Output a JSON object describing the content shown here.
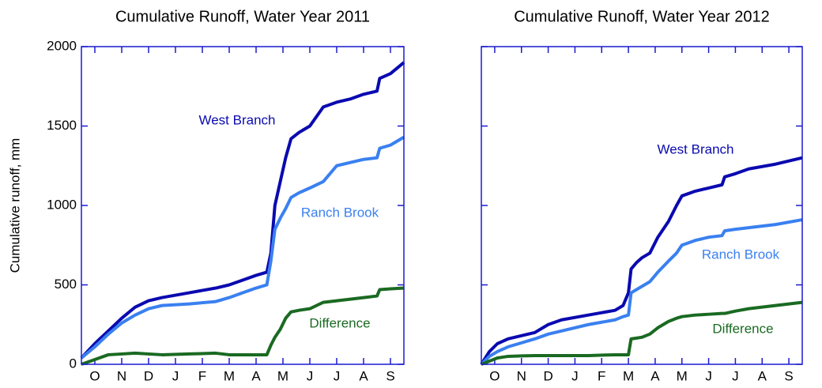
{
  "chart_data": [
    {
      "type": "line",
      "title": "Cumulative Runoff, Water Year 2011",
      "y_label": "Cumulative runoff, mm",
      "x": [
        0,
        0.5,
        1,
        1.5,
        2,
        2.5,
        3,
        4,
        5,
        5.5,
        6,
        6.5,
        6.9,
        7.05,
        7.2,
        7.4,
        7.6,
        7.8,
        8.1,
        8.5,
        9,
        9.5,
        10,
        10.5,
        11,
        11.1,
        11.5,
        12
      ],
      "xlim": [
        0,
        12
      ],
      "xticks": [
        {
          "value": 0.5,
          "label": "O"
        },
        {
          "value": 1.5,
          "label": "N"
        },
        {
          "value": 2.5,
          "label": "D"
        },
        {
          "value": 3.5,
          "label": "J"
        },
        {
          "value": 4.5,
          "label": "F"
        },
        {
          "value": 5.5,
          "label": "M"
        },
        {
          "value": 6.5,
          "label": "A"
        },
        {
          "value": 7.5,
          "label": "M"
        },
        {
          "value": 8.5,
          "label": "J"
        },
        {
          "value": 9.5,
          "label": "J"
        },
        {
          "value": 10.5,
          "label": "A"
        },
        {
          "value": 11.5,
          "label": "S"
        }
      ],
      "ylim": [
        0,
        2000
      ],
      "yticks": [
        0,
        500,
        1000,
        1500,
        2000
      ],
      "series": [
        {
          "name": "West Branch",
          "color": "#0a0ab0",
          "values": [
            40,
            130,
            210,
            290,
            360,
            400,
            420,
            450,
            480,
            500,
            530,
            560,
            580,
            700,
            1000,
            1150,
            1300,
            1420,
            1460,
            1500,
            1620,
            1650,
            1670,
            1700,
            1720,
            1800,
            1830,
            1900
          ]
        },
        {
          "name": "Ranch Brook",
          "color": "#3a80f0",
          "values": [
            40,
            110,
            190,
            260,
            310,
            350,
            370,
            380,
            395,
            420,
            450,
            480,
            500,
            650,
            850,
            920,
            980,
            1050,
            1080,
            1110,
            1150,
            1250,
            1270,
            1290,
            1300,
            1360,
            1380,
            1430
          ]
        },
        {
          "name": "Difference",
          "color": "#1a6a22",
          "values": [
            0,
            30,
            60,
            65,
            70,
            65,
            60,
            65,
            70,
            60,
            60,
            60,
            60,
            120,
            170,
            220,
            290,
            330,
            340,
            350,
            390,
            400,
            410,
            420,
            430,
            470,
            475,
            480
          ]
        }
      ]
    },
    {
      "type": "line",
      "title": "Cumulative Runoff, Water Year 2012",
      "x": [
        0,
        0.3,
        0.6,
        1,
        1.5,
        2,
        2.5,
        3,
        4,
        5,
        5.3,
        5.5,
        5.6,
        5.8,
        6,
        6.3,
        6.6,
        7,
        7.3,
        7.5,
        8,
        8.5,
        9,
        9.1,
        9.5,
        10,
        11,
        12
      ],
      "xlim": [
        0,
        12
      ],
      "xticks": [
        {
          "value": 0.5,
          "label": "O"
        },
        {
          "value": 1.5,
          "label": "N"
        },
        {
          "value": 2.5,
          "label": "D"
        },
        {
          "value": 3.5,
          "label": "J"
        },
        {
          "value": 4.5,
          "label": "F"
        },
        {
          "value": 5.5,
          "label": "M"
        },
        {
          "value": 6.5,
          "label": "A"
        },
        {
          "value": 7.5,
          "label": "M"
        },
        {
          "value": 8.5,
          "label": "J"
        },
        {
          "value": 9.5,
          "label": "J"
        },
        {
          "value": 10.5,
          "label": "A"
        },
        {
          "value": 11.5,
          "label": "S"
        }
      ],
      "ylim": [
        0,
        2000
      ],
      "yticks": [
        0,
        500,
        1000,
        1500,
        2000
      ],
      "series": [
        {
          "name": "West Branch",
          "color": "#0a0ab0",
          "values": [
            0,
            80,
            130,
            160,
            180,
            200,
            250,
            280,
            310,
            340,
            370,
            450,
            600,
            640,
            670,
            700,
            800,
            900,
            1000,
            1060,
            1090,
            1110,
            1130,
            1180,
            1200,
            1230,
            1260,
            1300
          ]
        },
        {
          "name": "Ranch Brook",
          "color": "#3a80f0",
          "values": [
            0,
            50,
            80,
            110,
            135,
            160,
            190,
            210,
            250,
            280,
            300,
            310,
            450,
            470,
            490,
            520,
            580,
            650,
            700,
            750,
            780,
            800,
            810,
            840,
            850,
            860,
            880,
            910
          ]
        },
        {
          "name": "Difference",
          "color": "#1a6a22",
          "values": [
            0,
            20,
            40,
            50,
            53,
            55,
            55,
            55,
            55,
            60,
            60,
            60,
            160,
            165,
            170,
            190,
            230,
            270,
            290,
            300,
            310,
            315,
            320,
            320,
            335,
            350,
            370,
            390
          ]
        }
      ]
    }
  ]
}
